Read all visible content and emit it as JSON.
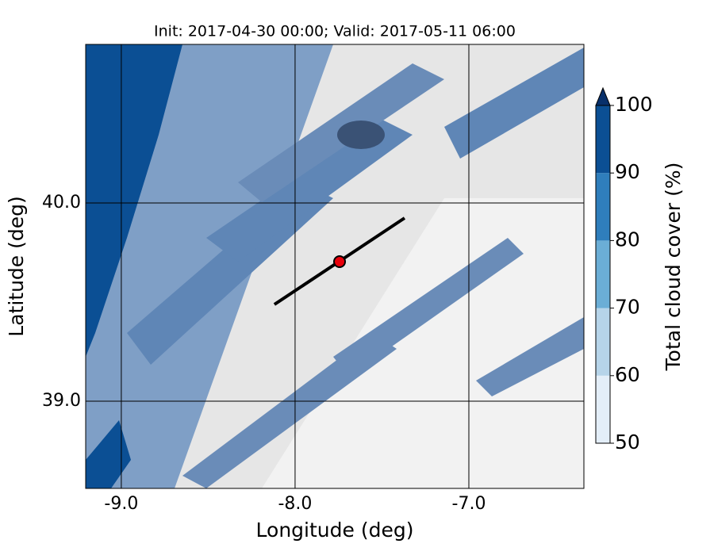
{
  "chart_data": {
    "type": "map",
    "title": "Init: 2017-04-30 00:00; Valid: 2017-05-11 06:00",
    "xlabel": "Longitude (deg)",
    "ylabel": "Latitude (deg)",
    "xlim": [
      -9.205,
      -6.338
    ],
    "ylim": [
      38.56,
      40.8
    ],
    "xticks": [
      {
        "value": -9,
        "label": "-9.0"
      },
      {
        "value": -8,
        "label": "-8.0"
      },
      {
        "value": -7,
        "label": "-7.0"
      }
    ],
    "yticks": [
      {
        "value": 39,
        "label": "39.0"
      },
      {
        "value": 40,
        "label": "40.0"
      }
    ],
    "grid": true,
    "cross_section": {
      "lon": [
        -8.119,
        -7.37
      ],
      "lat": [
        39.488,
        39.924
      ],
      "color": "#000000"
    },
    "point": {
      "lon": -7.744,
      "lat": 39.704,
      "color": "#e8000b"
    },
    "colorbar": {
      "label": "Total cloud cover (%)",
      "levels": [
        50,
        60,
        70,
        80,
        90,
        100
      ],
      "colors": [
        "#e3eef8",
        "#b6d4e9",
        "#6baed6",
        "#2f7ebc",
        "#0b4f94"
      ],
      "extend": "max"
    }
  }
}
